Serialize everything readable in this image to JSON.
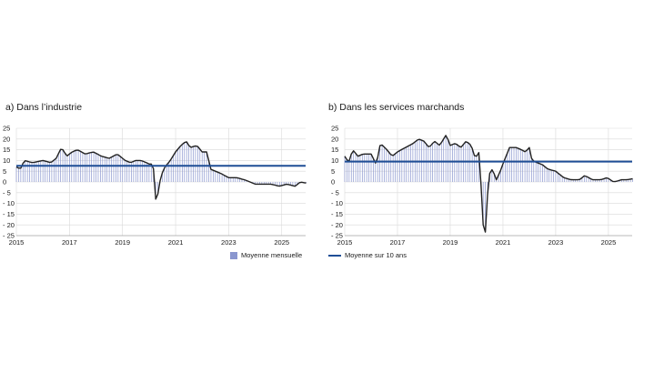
{
  "colors": {
    "bars": "#8a96cf",
    "line": "#222222",
    "average": "#1f4e96",
    "grid": "#d9d9d9"
  },
  "legend": {
    "bars_label": "Moyenne mensuelle",
    "average_label": "Moyenne sur 10 ans"
  },
  "chart_data": [
    {
      "type": "bar",
      "title": "a)  Dans l’industrie",
      "xlabel": "",
      "ylabel": "",
      "ylim": [
        -25,
        25
      ],
      "yticks": [
        25,
        20,
        15,
        10,
        5,
        0,
        -5,
        -10,
        -15,
        -20,
        -25
      ],
      "ytick_labels": [
        "25",
        "20",
        "15",
        "10",
        "5",
        "0",
        "- 5",
        "- 10",
        "- 15",
        "- 20",
        "- 25"
      ],
      "xlim": [
        2015,
        2025.9
      ],
      "xticks": [
        2015,
        2017,
        2019,
        2021,
        2023,
        2025
      ],
      "ten_year_average": 7.5,
      "series": [
        {
          "name": "Moyenne mensuelle",
          "keypoints": [
            [
              2015.0,
              7
            ],
            [
              2015.15,
              6
            ],
            [
              2015.3,
              10
            ],
            [
              2015.6,
              9
            ],
            [
              2016.0,
              10
            ],
            [
              2016.3,
              9
            ],
            [
              2016.5,
              11
            ],
            [
              2016.7,
              16
            ],
            [
              2016.9,
              12
            ],
            [
              2017.1,
              14
            ],
            [
              2017.3,
              15
            ],
            [
              2017.6,
              13
            ],
            [
              2017.9,
              14
            ],
            [
              2018.2,
              12
            ],
            [
              2018.5,
              11
            ],
            [
              2018.8,
              13
            ],
            [
              2019.1,
              10
            ],
            [
              2019.3,
              9
            ],
            [
              2019.5,
              10
            ],
            [
              2019.7,
              10
            ],
            [
              2019.9,
              9
            ],
            [
              2020.05,
              8
            ],
            [
              2020.15,
              9
            ],
            [
              2020.25,
              -8
            ],
            [
              2020.3,
              -8
            ],
            [
              2020.45,
              3
            ],
            [
              2020.6,
              7
            ],
            [
              2020.8,
              10
            ],
            [
              2021.0,
              14
            ],
            [
              2021.2,
              17
            ],
            [
              2021.4,
              19
            ],
            [
              2021.55,
              16
            ],
            [
              2021.8,
              17
            ],
            [
              2022.0,
              14
            ],
            [
              2022.2,
              14
            ],
            [
              2022.3,
              6
            ],
            [
              2022.5,
              5
            ],
            [
              2022.7,
              4
            ],
            [
              2023.0,
              2
            ],
            [
              2023.3,
              2
            ],
            [
              2023.6,
              1
            ],
            [
              2024.0,
              -1
            ],
            [
              2024.3,
              -1
            ],
            [
              2024.6,
              -1
            ],
            [
              2024.9,
              -2
            ],
            [
              2025.2,
              -1
            ],
            [
              2025.5,
              -2
            ],
            [
              2025.7,
              0
            ],
            [
              2025.9,
              -0.5
            ]
          ]
        }
      ]
    },
    {
      "type": "bar",
      "title": "b)  Dans les services marchands",
      "xlabel": "",
      "ylabel": "",
      "ylim": [
        -25,
        25
      ],
      "yticks": [
        25,
        20,
        15,
        10,
        5,
        0,
        -5,
        -10,
        -15,
        -20,
        -25
      ],
      "ytick_labels": [
        "25",
        "20",
        "15",
        "10",
        "5",
        "0",
        "- 5",
        "- 10",
        "- 15",
        "- 20",
        "- 25"
      ],
      "xlim": [
        2015,
        2025.9
      ],
      "xticks": [
        2015,
        2017,
        2019,
        2021,
        2023,
        2025
      ],
      "ten_year_average": 9.5,
      "series": [
        {
          "name": "Moyenne mensuelle",
          "keypoints": [
            [
              2015.0,
              12
            ],
            [
              2015.15,
              9
            ],
            [
              2015.3,
              15
            ],
            [
              2015.5,
              12
            ],
            [
              2015.7,
              13
            ],
            [
              2016.0,
              13
            ],
            [
              2016.2,
              8
            ],
            [
              2016.35,
              18
            ],
            [
              2016.6,
              15
            ],
            [
              2016.8,
              12
            ],
            [
              2017.0,
              14
            ],
            [
              2017.3,
              16
            ],
            [
              2017.6,
              18
            ],
            [
              2017.8,
              20
            ],
            [
              2018.0,
              19
            ],
            [
              2018.2,
              16
            ],
            [
              2018.4,
              19
            ],
            [
              2018.6,
              17
            ],
            [
              2018.85,
              22
            ],
            [
              2019.0,
              17
            ],
            [
              2019.2,
              18
            ],
            [
              2019.4,
              16
            ],
            [
              2019.6,
              19
            ],
            [
              2019.8,
              17
            ],
            [
              2019.95,
              11
            ],
            [
              2020.1,
              14
            ],
            [
              2020.25,
              -20
            ],
            [
              2020.35,
              -24
            ],
            [
              2020.45,
              3
            ],
            [
              2020.6,
              6
            ],
            [
              2020.75,
              1
            ],
            [
              2020.9,
              5
            ],
            [
              2021.05,
              10
            ],
            [
              2021.25,
              16
            ],
            [
              2021.5,
              16
            ],
            [
              2021.7,
              15
            ],
            [
              2021.85,
              14
            ],
            [
              2022.0,
              16
            ],
            [
              2022.1,
              10
            ],
            [
              2022.3,
              9
            ],
            [
              2022.5,
              8
            ],
            [
              2022.7,
              6
            ],
            [
              2023.0,
              5
            ],
            [
              2023.3,
              2
            ],
            [
              2023.6,
              1
            ],
            [
              2023.9,
              1
            ],
            [
              2024.1,
              3
            ],
            [
              2024.4,
              1
            ],
            [
              2024.7,
              1
            ],
            [
              2024.95,
              2
            ],
            [
              2025.2,
              0
            ],
            [
              2025.5,
              1
            ],
            [
              2025.7,
              1
            ],
            [
              2025.9,
              1.5
            ]
          ]
        }
      ]
    }
  ]
}
